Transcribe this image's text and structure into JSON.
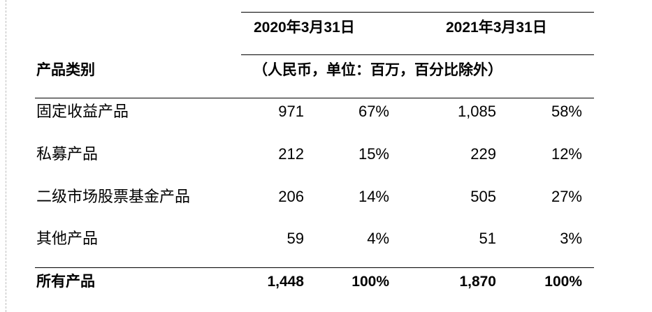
{
  "table": {
    "header": {
      "category": "产品类别",
      "periods": [
        "2020年3月31日",
        "2021年3月31日"
      ],
      "unit": "（人民币，单位：百万，百分比除外）"
    },
    "rows": [
      [
        "固定收益产品",
        "971",
        "67%",
        "1,085",
        "58%"
      ],
      [
        "私募产品",
        "212",
        "15%",
        "229",
        "12%"
      ],
      [
        "二级市场股票基金产品",
        "206",
        "14%",
        "505",
        "27%"
      ],
      [
        "其他产品",
        "59",
        "4%",
        "51",
        "3%"
      ]
    ],
    "total": [
      "所有产品",
      "1,448",
      "100%",
      "1,870",
      "100%"
    ]
  }
}
